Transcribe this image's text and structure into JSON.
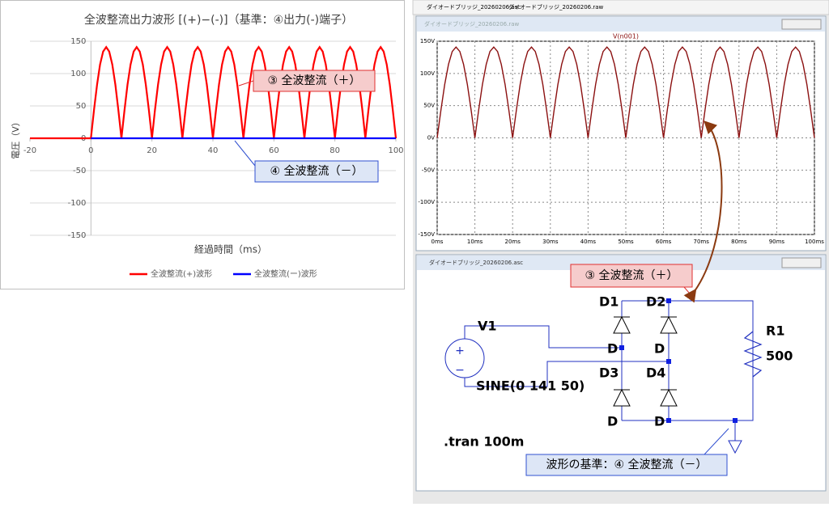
{
  "excel_chart": {
    "type": "line",
    "title": "全波整流出力波形 [(+)−(-)]（基準：④出力(-)端子）",
    "x_label": "経過時間（ms）",
    "y_label": "電圧（V）",
    "xlim": [
      -20,
      100
    ],
    "xticks": [
      -20,
      0,
      20,
      40,
      60,
      80,
      100
    ],
    "ylim": [
      -150,
      150
    ],
    "yticks": [
      -150,
      -100,
      -50,
      0,
      50,
      100,
      150
    ],
    "grid": true,
    "series": [
      {
        "name": "全波整流(+)波形",
        "color": "#ff0000",
        "x": [
          -20,
          0,
          1,
          2,
          3,
          4,
          5,
          6,
          7,
          8,
          9,
          10,
          11,
          12,
          13,
          14,
          15,
          16,
          17,
          18,
          19,
          20,
          21,
          22,
          23,
          24,
          25,
          26,
          27,
          28,
          29,
          30,
          31,
          32,
          33,
          34,
          35,
          36,
          37,
          38,
          39,
          40,
          41,
          42,
          43,
          44,
          45,
          46,
          47,
          48,
          49,
          50,
          51,
          52,
          53,
          54,
          55,
          56,
          57,
          58,
          59,
          60,
          61,
          62,
          63,
          64,
          65,
          66,
          67,
          68,
          69,
          70,
          71,
          72,
          73,
          74,
          75,
          76,
          77,
          78,
          79,
          80,
          81,
          82,
          83,
          84,
          85,
          86,
          87,
          88,
          89,
          90,
          91,
          92,
          93,
          94,
          95,
          96,
          97,
          98,
          99,
          100
        ],
        "values": [
          0,
          0,
          43.6,
          82.9,
          114.1,
          134.1,
          141,
          134.1,
          114.1,
          82.9,
          43.6,
          0,
          43.6,
          82.9,
          114.1,
          134.1,
          141,
          134.1,
          114.1,
          82.9,
          43.6,
          0,
          43.6,
          82.9,
          114.1,
          134.1,
          141,
          134.1,
          114.1,
          82.9,
          43.6,
          0,
          43.6,
          82.9,
          114.1,
          134.1,
          141,
          134.1,
          114.1,
          82.9,
          43.6,
          0,
          43.6,
          82.9,
          114.1,
          134.1,
          141,
          134.1,
          114.1,
          82.9,
          43.6,
          0,
          43.6,
          82.9,
          114.1,
          134.1,
          141,
          134.1,
          114.1,
          82.9,
          43.6,
          0,
          43.6,
          82.9,
          114.1,
          134.1,
          141,
          134.1,
          114.1,
          82.9,
          43.6,
          0,
          43.6,
          82.9,
          114.1,
          134.1,
          141,
          134.1,
          114.1,
          82.9,
          43.6,
          0,
          43.6,
          82.9,
          114.1,
          134.1,
          141,
          134.1,
          114.1,
          82.9,
          43.6,
          0,
          43.6,
          82.9,
          114.1,
          134.1,
          141,
          134.1,
          114.1,
          82.9,
          43.6,
          0
        ]
      },
      {
        "name": "全波整流(ー)波形",
        "color": "#0000ff",
        "x": [
          0,
          100
        ],
        "values": [
          0,
          0
        ]
      }
    ],
    "callout_plus": "③ 全波整流（＋）",
    "callout_minus": "④ 全波整流（－）"
  },
  "ltspice": {
    "tabs": [
      "ダイオードブリッジ_20260206.asc",
      "ダイオードブリッジ_20260206.raw"
    ],
    "plot": {
      "type": "line",
      "window_title": "ダイオードブリッジ_20260206.raw",
      "trace_name": "V(n001)",
      "color": "#8b1010",
      "xlim": [
        0,
        100
      ],
      "xticks": [
        {
          "value": 0,
          "label": "0ms"
        },
        {
          "value": 10,
          "label": "10ms"
        },
        {
          "value": 20,
          "label": "20ms"
        },
        {
          "value": 30,
          "label": "30ms"
        },
        {
          "value": 40,
          "label": "40ms"
        },
        {
          "value": 50,
          "label": "50ms"
        },
        {
          "value": 60,
          "label": "60ms"
        },
        {
          "value": 70,
          "label": "70ms"
        },
        {
          "value": 80,
          "label": "80ms"
        },
        {
          "value": 90,
          "label": "90ms"
        },
        {
          "value": 100,
          "label": "100ms"
        }
      ],
      "ylim": [
        -150,
        150
      ],
      "yticks": [
        {
          "value": -150,
          "label": "-150V"
        },
        {
          "value": -100,
          "label": "-100V"
        },
        {
          "value": -50,
          "label": "-50V"
        },
        {
          "value": 0,
          "label": "0V"
        },
        {
          "value": 50,
          "label": "50V"
        },
        {
          "value": 100,
          "label": "100V"
        },
        {
          "value": 150,
          "label": "150V"
        }
      ],
      "x": [
        0,
        1,
        2,
        3,
        4,
        5,
        6,
        7,
        8,
        9,
        10,
        11,
        12,
        13,
        14,
        15,
        16,
        17,
        18,
        19,
        20,
        21,
        22,
        23,
        24,
        25,
        26,
        27,
        28,
        29,
        30,
        31,
        32,
        33,
        34,
        35,
        36,
        37,
        38,
        39,
        40,
        41,
        42,
        43,
        44,
        45,
        46,
        47,
        48,
        49,
        50,
        51,
        52,
        53,
        54,
        55,
        56,
        57,
        58,
        59,
        60,
        61,
        62,
        63,
        64,
        65,
        66,
        67,
        68,
        69,
        70,
        71,
        72,
        73,
        74,
        75,
        76,
        77,
        78,
        79,
        80,
        81,
        82,
        83,
        84,
        85,
        86,
        87,
        88,
        89,
        90,
        91,
        92,
        93,
        94,
        95,
        96,
        97,
        98,
        99,
        100
      ],
      "values": [
        0,
        43.6,
        82.9,
        114.1,
        134.1,
        141,
        134.1,
        114.1,
        82.9,
        43.6,
        0,
        43.6,
        82.9,
        114.1,
        134.1,
        141,
        134.1,
        114.1,
        82.9,
        43.6,
        0,
        43.6,
        82.9,
        114.1,
        134.1,
        141,
        134.1,
        114.1,
        82.9,
        43.6,
        0,
        43.6,
        82.9,
        114.1,
        134.1,
        141,
        134.1,
        114.1,
        82.9,
        43.6,
        0,
        43.6,
        82.9,
        114.1,
        134.1,
        141,
        134.1,
        114.1,
        82.9,
        43.6,
        0,
        43.6,
        82.9,
        114.1,
        134.1,
        141,
        134.1,
        114.1,
        82.9,
        43.6,
        0,
        43.6,
        82.9,
        114.1,
        134.1,
        141,
        134.1,
        114.1,
        82.9,
        43.6,
        0,
        43.6,
        82.9,
        114.1,
        134.1,
        141,
        134.1,
        114.1,
        82.9,
        43.6,
        0,
        43.6,
        82.9,
        114.1,
        134.1,
        141,
        134.1,
        114.1,
        82.9,
        43.6,
        0,
        43.6,
        82.9,
        114.1,
        134.1,
        141,
        134.1,
        114.1,
        82.9,
        43.6,
        0
      ]
    },
    "schematic": {
      "window_title": "ダイオードブリッジ_20260206.asc",
      "source_name": "V1",
      "source_value": "SINE(0 141 50)",
      "diodes": [
        {
          "name": "D1",
          "model": "D"
        },
        {
          "name": "D2",
          "model": "D"
        },
        {
          "name": "D3",
          "model": "D"
        },
        {
          "name": "D4",
          "model": "D"
        }
      ],
      "resistor_name": "R1",
      "resistor_value": "500",
      "directive": ".tran 100m",
      "callout_plus": "③ 全波整流（＋）",
      "callout_reference": "波形の基準：④ 全波整流（－）"
    }
  }
}
